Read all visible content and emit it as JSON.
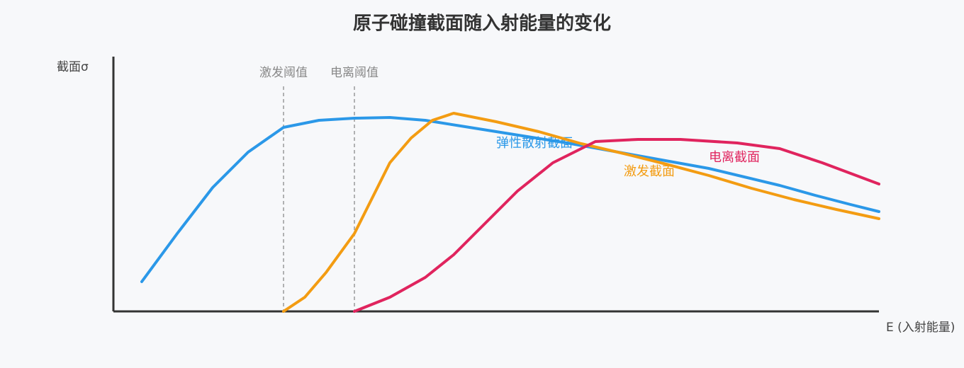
{
  "chart_data": {
    "type": "line",
    "title": "原子碰撞截面随入射能量的变化",
    "y_label": "截面σ",
    "x_label": "E (入射能量)",
    "xlim": [
      0,
      108
    ],
    "ylim": [
      0,
      36
    ],
    "thresholds": [
      {
        "label": "激发阈值",
        "x": 24
      },
      {
        "label": "电离阈值",
        "x": 34
      }
    ],
    "series": [
      {
        "name": "弹性散射截面",
        "color": "#2b98e8",
        "x": [
          4,
          9,
          14,
          19,
          24,
          29,
          34,
          39,
          44,
          49,
          54,
          59,
          64,
          69,
          74,
          79,
          84,
          89,
          94,
          99,
          104,
          108
        ],
        "values": [
          4.2,
          11,
          17.5,
          22.5,
          26,
          27,
          27.3,
          27.4,
          27,
          26.2,
          25.4,
          24.6,
          23.8,
          22.9,
          22,
          21.1,
          20.2,
          19,
          17.8,
          16.4,
          15.1,
          14.1
        ]
      },
      {
        "name": "激发截面",
        "color": "#f39c12",
        "x": [
          24,
          27,
          30,
          34,
          36,
          39,
          42,
          45,
          48,
          54,
          60,
          66,
          72,
          78,
          84,
          90,
          96,
          102,
          108
        ],
        "values": [
          0,
          2,
          5.5,
          11,
          15,
          21,
          24.5,
          27,
          28,
          26.8,
          25.4,
          23.7,
          22.3,
          20.8,
          19.2,
          17.4,
          15.8,
          14.4,
          13.1
        ]
      },
      {
        "name": "电离截面",
        "color": "#e0245e",
        "x": [
          34,
          39,
          44,
          48,
          52,
          57,
          62,
          68,
          74,
          80,
          88,
          94,
          100,
          108
        ],
        "values": [
          0,
          2,
          4.8,
          8,
          12,
          17,
          21,
          24,
          24.3,
          24.3,
          23.8,
          23,
          21,
          18
        ]
      }
    ]
  }
}
